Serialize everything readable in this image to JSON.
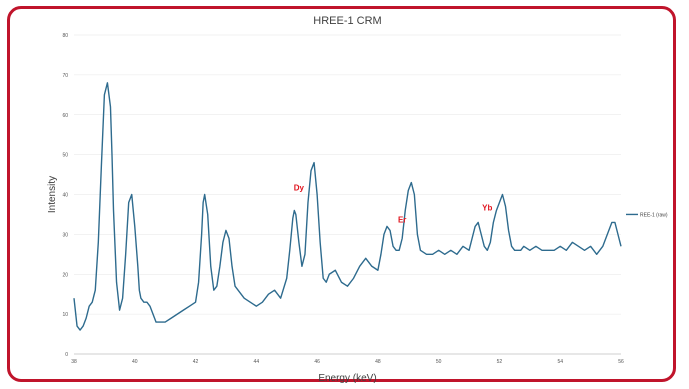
{
  "chart_data": {
    "type": "line",
    "title": "HREE-1 CRM",
    "xlabel": "Energy (keV)",
    "ylabel": "Intensity",
    "xlim": [
      38,
      56
    ],
    "ylim": [
      0,
      80
    ],
    "x_ticks": [
      38,
      40,
      42,
      44,
      46,
      48,
      50,
      52,
      54,
      56
    ],
    "y_ticks": [
      0,
      10,
      20,
      30,
      40,
      50,
      60,
      70,
      80
    ],
    "grid": "horizontal",
    "legend_position": "right",
    "colors": {
      "series": "#2e6b8e",
      "annotation": "#e0141e",
      "frame": "#c0142b"
    },
    "series": [
      {
        "name": "REE-1 (raw)",
        "x": [
          38.0,
          38.1,
          38.2,
          38.3,
          38.4,
          38.5,
          38.6,
          38.7,
          38.8,
          38.9,
          39.0,
          39.1,
          39.2,
          39.25,
          39.3,
          39.4,
          39.5,
          39.6,
          39.7,
          39.8,
          39.9,
          40.0,
          40.1,
          40.15,
          40.2,
          40.3,
          40.4,
          40.5,
          40.6,
          40.7,
          40.8,
          40.9,
          41.0,
          41.2,
          41.4,
          41.6,
          41.8,
          42.0,
          42.1,
          42.2,
          42.25,
          42.3,
          42.4,
          42.5,
          42.6,
          42.7,
          42.8,
          42.9,
          43.0,
          43.1,
          43.2,
          43.3,
          43.4,
          43.6,
          43.8,
          44.0,
          44.2,
          44.4,
          44.6,
          44.8,
          45.0,
          45.1,
          45.2,
          45.25,
          45.3,
          45.4,
          45.5,
          45.6,
          45.7,
          45.8,
          45.9,
          46.0,
          46.1,
          46.2,
          46.3,
          46.4,
          46.6,
          46.8,
          47.0,
          47.2,
          47.4,
          47.6,
          47.8,
          48.0,
          48.1,
          48.2,
          48.3,
          48.4,
          48.5,
          48.6,
          48.7,
          48.8,
          48.9,
          49.0,
          49.1,
          49.2,
          49.3,
          49.4,
          49.6,
          49.8,
          50.0,
          50.2,
          50.4,
          50.6,
          50.8,
          51.0,
          51.1,
          51.2,
          51.3,
          51.4,
          51.5,
          51.6,
          51.7,
          51.8,
          51.9,
          52.0,
          52.1,
          52.2,
          52.3,
          52.4,
          52.5,
          52.6,
          52.7,
          52.8,
          53.0,
          53.2,
          53.4,
          53.6,
          53.8,
          54.0,
          54.2,
          54.4,
          54.6,
          54.8,
          55.0,
          55.2,
          55.4,
          55.6,
          55.7,
          55.8,
          55.9,
          56.0
        ],
        "y": [
          14,
          7,
          6,
          7,
          9,
          12,
          13,
          16,
          28,
          47,
          65,
          68,
          62,
          50,
          36,
          18,
          11,
          14,
          25,
          38,
          40,
          32,
          22,
          16,
          14,
          13,
          13,
          12,
          10,
          8,
          8,
          8,
          8,
          9,
          10,
          11,
          12,
          13,
          18,
          30,
          38,
          40,
          35,
          22,
          16,
          17,
          22,
          28,
          31,
          29,
          22,
          17,
          16,
          14,
          13,
          12,
          13,
          15,
          16,
          14,
          19,
          26,
          34,
          36,
          35,
          28,
          22,
          25,
          38,
          46,
          48,
          40,
          28,
          19,
          18,
          20,
          21,
          18,
          17,
          19,
          22,
          24,
          22,
          21,
          25,
          30,
          32,
          31,
          27,
          26,
          26,
          29,
          36,
          41,
          43,
          40,
          30,
          26,
          25,
          25,
          26,
          25,
          26,
          25,
          27,
          26,
          29,
          32,
          33,
          30,
          27,
          26,
          28,
          33,
          36,
          38,
          40,
          37,
          31,
          27,
          26,
          26,
          26,
          27,
          26,
          27,
          26,
          26,
          26,
          27,
          26,
          28,
          27,
          26,
          27,
          25,
          27,
          31,
          33,
          33,
          30,
          27
        ]
      }
    ],
    "annotations": [
      {
        "text": "Dy",
        "x": 45.4,
        "y": 41
      },
      {
        "text": "Er",
        "x": 48.8,
        "y": 33
      },
      {
        "text": "Yb",
        "x": 51.6,
        "y": 36
      }
    ]
  }
}
